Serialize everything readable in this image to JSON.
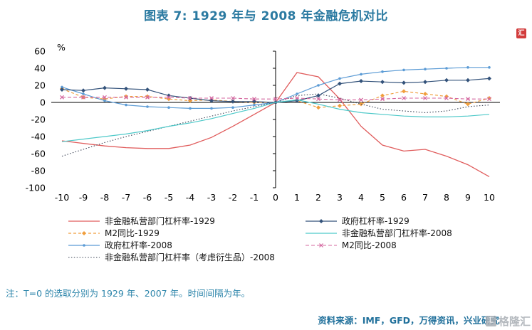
{
  "title": "图表 7: 1929 年与 2008 年金融危机对比",
  "note": "注：T=0 的选取分别为 1929 年、2007 年。时间间隔为年。",
  "source": "资料来源：IMF，GFD，万得资讯，兴业研究",
  "watermark": {
    "text": "格隆汇",
    "logo_glyph": "汇"
  },
  "site_logo_glyph": "汇",
  "colors": {
    "title": "#2b7aa1",
    "note": "#2e86ab",
    "source": "#20709b",
    "watermark": "#a8adb3",
    "logo": "#d23c3c",
    "axis": "#000000"
  },
  "chart_data": {
    "type": "line",
    "title": "图表 7: 1929 年与 2008 年金融危机对比",
    "xlabel": "",
    "ylabel": "%",
    "xlim": [
      -10.5,
      10.5
    ],
    "ylim": [
      -100,
      60
    ],
    "xticks": [
      -10,
      -9,
      -8,
      -7,
      -6,
      -5,
      -4,
      -3,
      -2,
      -1,
      0,
      1,
      2,
      3,
      4,
      5,
      6,
      7,
      8,
      9,
      10
    ],
    "yticks": [
      60,
      40,
      20,
      0,
      -20,
      -40,
      -60,
      -80,
      -100
    ],
    "grid": false,
    "legend_position": "below",
    "x": [
      -10,
      -9,
      -8,
      -7,
      -6,
      -5,
      -4,
      -3,
      -2,
      -1,
      0,
      1,
      2,
      3,
      4,
      5,
      6,
      7,
      8,
      9,
      10
    ],
    "series": [
      {
        "name": "非金融私营部门杠杆率-1929",
        "color": "#e05c5c",
        "dash": null,
        "marker": null,
        "width": 1.3,
        "values": [
          -45,
          -48,
          -51,
          -53,
          -54,
          -54,
          -50,
          -41,
          -28,
          -14,
          0,
          35,
          30,
          4,
          -28,
          -50,
          -57,
          -55,
          -63,
          -73,
          -87
        ]
      },
      {
        "name": "M2同比-1929",
        "color": "#f09e3c",
        "dash": "4,3",
        "marker": "diamond",
        "width": 1.2,
        "values": [
          16,
          6,
          4,
          7,
          7,
          4,
          2,
          3,
          1,
          0,
          0,
          2,
          -6,
          -4,
          -2,
          8,
          13,
          10,
          7,
          -2,
          5
        ]
      },
      {
        "name": "政府杠杆率-2008",
        "color": "#5b9bd5",
        "dash": null,
        "marker": "dot",
        "width": 1.2,
        "values": [
          18,
          10,
          2,
          -3,
          -5,
          -6,
          -7,
          -7,
          -6,
          -3,
          0,
          10,
          20,
          28,
          33,
          36,
          38,
          39,
          40,
          41,
          41
        ]
      },
      {
        "name": "非金融私营部门杠杆率（考虑衍生品）-2008",
        "color": "#3c4456",
        "dash": "1.5,2.4",
        "marker": null,
        "width": 1.1,
        "values": [
          -63,
          -55,
          -47,
          -40,
          -34,
          -28,
          -22,
          -16,
          -10,
          -5,
          0,
          8,
          10,
          5,
          -2,
          -8,
          -10,
          -12,
          -10,
          -5,
          -3
        ]
      },
      {
        "name": "政府杠杆率-1929",
        "color": "#33527a",
        "dash": null,
        "marker": "diamond",
        "width": 1.2,
        "values": [
          15,
          14,
          17,
          16,
          15,
          8,
          5,
          2,
          1,
          1,
          0,
          2,
          8,
          22,
          25,
          24,
          23,
          24,
          26,
          26,
          28
        ]
      },
      {
        "name": "非金融私营部门杠杆率-2008",
        "color": "#4ec9c9",
        "dash": null,
        "marker": null,
        "width": 1.2,
        "values": [
          -46,
          -43,
          -40,
          -37,
          -33,
          -28,
          -24,
          -19,
          -13,
          -7,
          0,
          3,
          -2,
          -8,
          -12,
          -14,
          -16,
          -17,
          -17,
          -16,
          -14
        ]
      },
      {
        "name": "M2同比-2008",
        "color": "#d4679f",
        "dash": "5,3",
        "marker": "x",
        "width": 1.1,
        "values": [
          6,
          6,
          6,
          6,
          6,
          6,
          5,
          5,
          5,
          4,
          4,
          5,
          4,
          3,
          3,
          4,
          5,
          5,
          5,
          4,
          4
        ]
      }
    ],
    "legend_columns": [
      [
        0,
        1,
        2,
        3
      ],
      [
        4,
        5,
        6
      ]
    ]
  }
}
